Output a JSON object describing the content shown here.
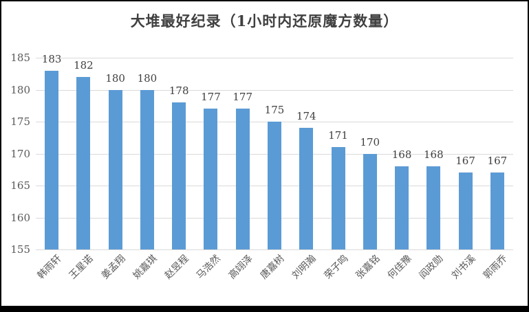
{
  "window": {
    "background": "#ffffff",
    "frame_border_color": "#000000"
  },
  "chart_data": {
    "type": "bar",
    "title": "大堆最好纪录（1小时内还原魔方数量）",
    "categories": [
      "韩雨轩",
      "王星诺",
      "姜孟翔",
      "姚嘉琪",
      "赵昱程",
      "马浩然",
      "高翊泽",
      "唐嘉树",
      "刘明瀚",
      "荣子鸣",
      "张嘉铭",
      "何佳豫",
      "阎政勋",
      "刘书溪",
      "郭雨乔"
    ],
    "values": [
      183,
      182,
      180,
      180,
      178,
      177,
      177,
      175,
      174,
      171,
      170,
      168,
      168,
      167,
      167
    ],
    "data_labels": [
      "183",
      "182",
      "180",
      "180",
      "178",
      "177",
      "177",
      "175",
      "174",
      "171",
      "170",
      "168",
      "168",
      "167",
      "167"
    ],
    "y_tick_labels": [
      "155",
      "160",
      "165",
      "170",
      "175",
      "180",
      "185"
    ],
    "xlabel": "",
    "ylabel": "",
    "ylim": [
      155,
      185
    ],
    "ytick_step": 5,
    "grid": true,
    "legend": "none",
    "data_labels_shown": true,
    "colors": {
      "bar": "#5b9bd5",
      "gridline": "#d9d9d9",
      "axis_tick_label": "#595959",
      "value_label": "#404040",
      "title": "#404040"
    }
  }
}
